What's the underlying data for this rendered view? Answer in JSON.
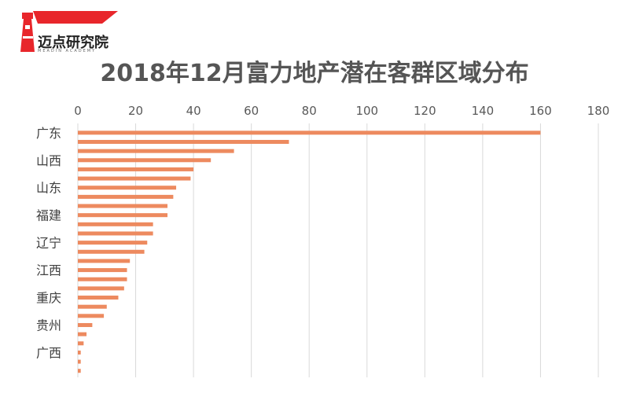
{
  "brand": {
    "name": "迈点研究院",
    "subtitle": "MEADIN ACADEMY",
    "accent": "#e8262b"
  },
  "chart_data": {
    "type": "bar",
    "orientation": "horizontal",
    "title": "2018年12月富力地产潜在客群区域分布",
    "xlim": [
      0,
      180
    ],
    "x_ticks": [
      0,
      20,
      40,
      60,
      80,
      100,
      120,
      140,
      160,
      180
    ],
    "x_axis_position": "top",
    "grid": true,
    "bar_color": "#ed8a5f",
    "category_labels": [
      "广东",
      "山西",
      "山东",
      "福建",
      "辽宁",
      "江西",
      "重庆",
      "贵州",
      "广西"
    ],
    "values": [
      160,
      73,
      54,
      46,
      40,
      39,
      34,
      33,
      31,
      31,
      26,
      26,
      24,
      23,
      18,
      17,
      17,
      16,
      14,
      10,
      9,
      5,
      3,
      2,
      1,
      1,
      1
    ]
  }
}
